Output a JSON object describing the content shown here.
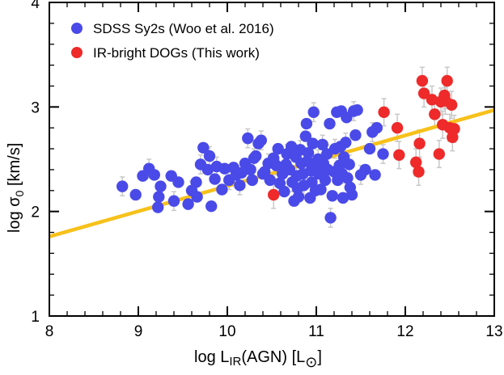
{
  "chart_data": {
    "type": "scatter",
    "xlabel": {
      "prefix": "log L",
      "sub": "IR",
      "suffix": "(AGN) [L",
      "sub2": "⊙",
      "close": "]"
    },
    "ylabel": {
      "prefix": "log σ",
      "sub": "0",
      "suffix": " [km/s]"
    },
    "xlim": [
      8,
      13
    ],
    "ylim": [
      1,
      4
    ],
    "xticks": [
      8,
      9,
      10,
      11,
      12,
      13
    ],
    "yticks": [
      1,
      2,
      3,
      4
    ],
    "legend_position": "top-left",
    "colors": {
      "sdss": "#4a4ae8",
      "dogs": "#ee2a2a",
      "fit": "#f7c11a",
      "errorbar": "#c8c8c8"
    },
    "series": [
      {
        "name": "SDSS Sy2s (Woo et al. 2016)",
        "marker": "circle",
        "points": [
          [
            8.82,
            2.24
          ],
          [
            8.97,
            2.16
          ],
          [
            9.05,
            2.34
          ],
          [
            9.12,
            2.41
          ],
          [
            9.18,
            2.35
          ],
          [
            9.22,
            2.04
          ],
          [
            9.23,
            2.14
          ],
          [
            9.25,
            2.24
          ],
          [
            9.37,
            2.34
          ],
          [
            9.4,
            2.1
          ],
          [
            9.45,
            2.28
          ],
          [
            9.56,
            2.07
          ],
          [
            9.6,
            2.2
          ],
          [
            9.65,
            2.28
          ],
          [
            9.66,
            2.14
          ],
          [
            9.7,
            2.45
          ],
          [
            9.73,
            2.61
          ],
          [
            9.78,
            2.4
          ],
          [
            9.8,
            2.53
          ],
          [
            9.82,
            2.05
          ],
          [
            9.86,
            2.31
          ],
          [
            9.88,
            2.43
          ],
          [
            9.94,
            2.21
          ],
          [
            9.97,
            2.41
          ],
          [
            10.02,
            2.3
          ],
          [
            10.07,
            2.42
          ],
          [
            10.1,
            2.35
          ],
          [
            10.14,
            2.25
          ],
          [
            10.16,
            2.37
          ],
          [
            10.2,
            2.46
          ],
          [
            10.23,
            2.7
          ],
          [
            10.26,
            2.4
          ],
          [
            10.28,
            2.3
          ],
          [
            10.3,
            2.51
          ],
          [
            10.32,
            2.53
          ],
          [
            10.35,
            2.65
          ],
          [
            10.38,
            2.68
          ],
          [
            10.4,
            2.36
          ],
          [
            10.42,
            2.38
          ],
          [
            10.46,
            2.46
          ],
          [
            10.48,
            2.3
          ],
          [
            10.52,
            2.51
          ],
          [
            10.55,
            2.44
          ],
          [
            10.57,
            2.6
          ],
          [
            10.59,
            2.27
          ],
          [
            10.62,
            2.36
          ],
          [
            10.64,
            2.19
          ],
          [
            10.66,
            2.45
          ],
          [
            10.67,
            2.55
          ],
          [
            10.7,
            2.4
          ],
          [
            10.72,
            2.62
          ],
          [
            10.73,
            2.28
          ],
          [
            10.75,
            2.1
          ],
          [
            10.77,
            2.52
          ],
          [
            10.78,
            2.34
          ],
          [
            10.79,
            2.22
          ],
          [
            10.8,
            2.14
          ],
          [
            10.82,
            2.59
          ],
          [
            10.83,
            2.46
          ],
          [
            10.85,
            2.36
          ],
          [
            10.86,
            2.25
          ],
          [
            10.88,
            2.72
          ],
          [
            10.89,
            2.84
          ],
          [
            10.9,
            2.48
          ],
          [
            10.91,
            2.56
          ],
          [
            10.93,
            2.13
          ],
          [
            10.94,
            2.39
          ],
          [
            10.95,
            2.28
          ],
          [
            10.96,
            2.65
          ],
          [
            10.97,
            2.95
          ],
          [
            10.98,
            2.43
          ],
          [
            10.99,
            2.2
          ],
          [
            11.02,
            2.5
          ],
          [
            11.03,
            2.36
          ],
          [
            11.05,
            2.21
          ],
          [
            11.07,
            2.64
          ],
          [
            11.08,
            2.46
          ],
          [
            11.1,
            2.3
          ],
          [
            11.12,
            2.55
          ],
          [
            11.13,
            2.4
          ],
          [
            11.15,
            2.84
          ],
          [
            11.16,
            1.94
          ],
          [
            11.18,
            2.15
          ],
          [
            11.2,
            2.38
          ],
          [
            11.21,
            2.6
          ],
          [
            11.23,
            2.95
          ],
          [
            11.24,
            2.3
          ],
          [
            11.26,
            2.44
          ],
          [
            11.27,
            2.62
          ],
          [
            11.28,
            2.96
          ],
          [
            11.29,
            2.36
          ],
          [
            11.3,
            2.13
          ],
          [
            11.31,
            2.52
          ],
          [
            11.33,
            2.66
          ],
          [
            11.34,
            2.9
          ],
          [
            11.35,
            2.32
          ],
          [
            11.37,
            2.45
          ],
          [
            11.38,
            2.23
          ],
          [
            11.4,
            2.16
          ],
          [
            11.42,
            2.96
          ],
          [
            11.44,
            2.73
          ],
          [
            11.46,
            2.97
          ],
          [
            11.5,
            2.35
          ],
          [
            11.55,
            2.4
          ],
          [
            11.6,
            2.6
          ],
          [
            11.63,
            2.76
          ],
          [
            11.66,
            2.35
          ],
          [
            11.68,
            2.8
          ],
          [
            11.75,
            2.55
          ]
        ]
      },
      {
        "name": "IR-bright DOGs (This work)",
        "marker": "circle",
        "points": [
          [
            10.52,
            2.16
          ],
          [
            11.76,
            2.95
          ],
          [
            11.91,
            2.8
          ],
          [
            11.93,
            2.54
          ],
          [
            12.12,
            2.47
          ],
          [
            12.15,
            2.38
          ],
          [
            12.16,
            2.65
          ],
          [
            12.19,
            3.25
          ],
          [
            12.21,
            3.13
          ],
          [
            12.3,
            3.07
          ],
          [
            12.33,
            2.93
          ],
          [
            12.38,
            2.55
          ],
          [
            12.4,
            3.05
          ],
          [
            12.42,
            2.83
          ],
          [
            12.44,
            3.11
          ],
          [
            12.45,
            3.06
          ],
          [
            12.47,
            3.25
          ],
          [
            12.5,
            2.8
          ],
          [
            12.52,
            3.02
          ],
          [
            12.53,
            2.71
          ],
          [
            12.55,
            2.79
          ]
        ]
      }
    ],
    "fit_line": {
      "x": [
        8,
        13
      ],
      "y": [
        1.76,
        2.97
      ]
    }
  }
}
